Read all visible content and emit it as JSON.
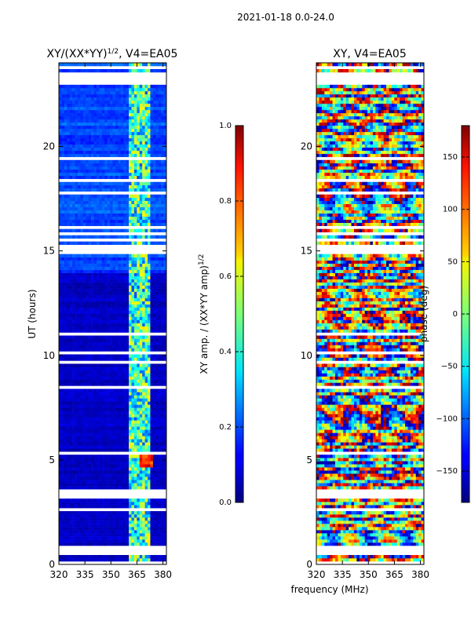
{
  "figure_title": "2021-01-18 0.0-24.0",
  "shared_xlabel": "frequency (MHz)",
  "chart_data": [
    {
      "type": "heatmap",
      "title_main": "XY/(XX*YY)",
      "title_exp": "1/2",
      "title_suffix": ", V4=EA05",
      "xlabel": "",
      "ylabel": "UT (hours)",
      "xlim": [
        320,
        382
      ],
      "ylim": [
        0,
        24
      ],
      "xticks": [
        320,
        335,
        350,
        365,
        380
      ],
      "yticks": [
        0,
        5,
        10,
        15,
        20
      ],
      "colorbar": {
        "label_main": "XY amp. / (XX*YY amp)",
        "label_exp": "1/2",
        "range": [
          0.0,
          1.0
        ],
        "ticks": [
          "0.0",
          "0.2",
          "0.4",
          "0.6",
          "0.8",
          "1.0"
        ],
        "tick_values": [
          0.0,
          0.2,
          0.4,
          0.6,
          0.8,
          1.0
        ]
      }
    },
    {
      "type": "heatmap",
      "title": "XY, V4=EA05",
      "xlabel": "frequency (MHz)",
      "ylabel": "",
      "xlim": [
        320,
        382
      ],
      "ylim": [
        0,
        24
      ],
      "xticks": [
        320,
        335,
        350,
        365,
        380
      ],
      "yticks": [
        0,
        5,
        10,
        15,
        20
      ],
      "colorbar": {
        "label": "phase (deg)",
        "range": [
          -180,
          180
        ],
        "ticks": [
          "−150",
          "−100",
          "−50",
          "0",
          "50",
          "100",
          "150"
        ],
        "tick_values": [
          -150,
          -100,
          -50,
          0,
          50,
          100,
          150
        ]
      }
    }
  ]
}
